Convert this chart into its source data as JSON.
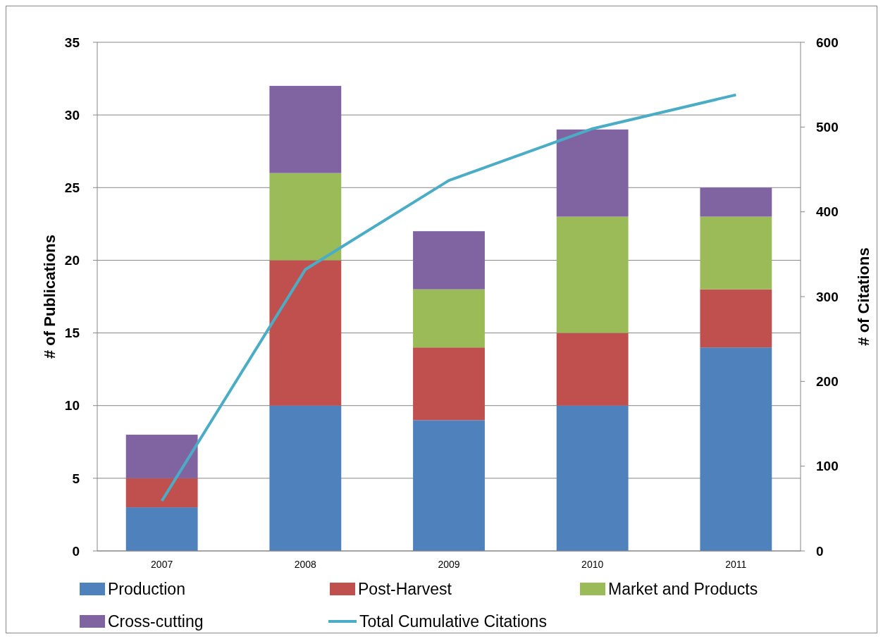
{
  "chart_data": {
    "type": "bar",
    "stacked": true,
    "categories": [
      "2007",
      "2008",
      "2009",
      "2010",
      "2011"
    ],
    "ylabel": "# of Publications",
    "y2label": "# of Citations",
    "ylim": [
      0,
      35
    ],
    "yticks": [
      0,
      5,
      10,
      15,
      20,
      25,
      30,
      35
    ],
    "y2lim": [
      0,
      600
    ],
    "y2ticks": [
      0,
      100,
      200,
      300,
      400,
      500,
      600
    ],
    "grid": "y",
    "legend": "bottom",
    "marker": "none",
    "series": [
      {
        "name": "Production",
        "color": "#4f81bd",
        "values": [
          3,
          10,
          9,
          10,
          14
        ]
      },
      {
        "name": "Post-Harvest",
        "color": "#c0504d",
        "values": [
          2,
          10,
          5,
          5,
          4
        ]
      },
      {
        "name": "Market and Products",
        "color": "#9bbb59",
        "values": [
          0,
          6,
          4,
          8,
          5
        ]
      },
      {
        "name": "Cross-cutting",
        "color": "#8064a2",
        "values": [
          3,
          6,
          4,
          6,
          2
        ]
      },
      {
        "name": "Total Cumulative Citations",
        "type": "line",
        "axis": "y2",
        "color": "#4bacc6",
        "values": [
          59,
          332,
          437,
          498,
          538
        ]
      }
    ]
  }
}
